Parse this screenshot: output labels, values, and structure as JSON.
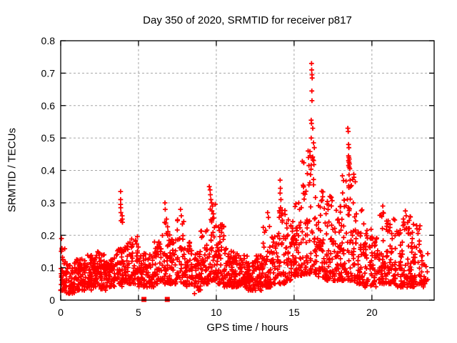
{
  "page": {
    "background": "#ffffff"
  },
  "chart_data": {
    "type": "scatter",
    "title": "Day 350 of 2020, SRMTID for receiver p817",
    "xlabel": "GPS time / hours",
    "ylabel": "SRMTID / TECUs",
    "xlim": [
      0,
      24
    ],
    "ylim": [
      0,
      0.8
    ],
    "grid": true,
    "legend": "none",
    "colors": {
      "marker": "#ff0000",
      "grid": "#a6a6a6",
      "axis": "#000000",
      "background": "#ffffff"
    },
    "xticks": [
      {
        "v": 0,
        "label": "0"
      },
      {
        "v": 5,
        "label": "5"
      },
      {
        "v": 10,
        "label": "10"
      },
      {
        "v": 15,
        "label": "15"
      },
      {
        "v": 20,
        "label": "20"
      }
    ],
    "yticks": [
      {
        "v": 0.0,
        "label": "0"
      },
      {
        "v": 0.1,
        "label": "0.1"
      },
      {
        "v": 0.2,
        "label": "0.2"
      },
      {
        "v": 0.3,
        "label": "0.3"
      },
      {
        "v": 0.4,
        "label": "0.4"
      },
      {
        "v": 0.5,
        "label": "0.5"
      },
      {
        "v": 0.6,
        "label": "0.6"
      },
      {
        "v": 0.7,
        "label": "0.7"
      },
      {
        "v": 0.8,
        "label": "0.8"
      }
    ],
    "series": [
      {
        "name": "srmtid",
        "marker": "plus",
        "color": "#ff0000",
        "density_bins": [
          {
            "x0": 0.0,
            "x1": 0.3,
            "n": 38,
            "ymin": 0.03,
            "ytyp": 0.07,
            "ymax": 0.16
          },
          {
            "x0": 0.3,
            "x1": 1.0,
            "n": 62,
            "ymin": 0.02,
            "ytyp": 0.06,
            "ymax": 0.12
          },
          {
            "x0": 1.0,
            "x1": 1.5,
            "n": 52,
            "ymin": 0.03,
            "ytyp": 0.07,
            "ymax": 0.13
          },
          {
            "x0": 1.5,
            "x1": 2.0,
            "n": 52,
            "ymin": 0.03,
            "ytyp": 0.08,
            "ymax": 0.14
          },
          {
            "x0": 2.0,
            "x1": 2.5,
            "n": 50,
            "ymin": 0.04,
            "ytyp": 0.08,
            "ymax": 0.15
          },
          {
            "x0": 2.5,
            "x1": 3.0,
            "n": 50,
            "ymin": 0.03,
            "ytyp": 0.08,
            "ymax": 0.14
          },
          {
            "x0": 3.0,
            "x1": 3.5,
            "n": 46,
            "ymin": 0.04,
            "ytyp": 0.08,
            "ymax": 0.13
          },
          {
            "x0": 3.5,
            "x1": 4.0,
            "n": 46,
            "ymin": 0.04,
            "ytyp": 0.09,
            "ymax": 0.16
          },
          {
            "x0": 4.0,
            "x1": 4.5,
            "n": 46,
            "ymin": 0.05,
            "ytyp": 0.1,
            "ymax": 0.18
          },
          {
            "x0": 4.5,
            "x1": 5.0,
            "n": 46,
            "ymin": 0.05,
            "ytyp": 0.1,
            "ymax": 0.2
          },
          {
            "x0": 5.0,
            "x1": 5.5,
            "n": 42,
            "ymin": 0.04,
            "ytyp": 0.09,
            "ymax": 0.15
          },
          {
            "x0": 5.5,
            "x1": 6.0,
            "n": 42,
            "ymin": 0.04,
            "ytyp": 0.08,
            "ymax": 0.14
          },
          {
            "x0": 6.0,
            "x1": 6.5,
            "n": 44,
            "ymin": 0.05,
            "ytyp": 0.1,
            "ymax": 0.18
          },
          {
            "x0": 6.5,
            "x1": 7.0,
            "n": 44,
            "ymin": 0.05,
            "ytyp": 0.11,
            "ymax": 0.24
          },
          {
            "x0": 7.0,
            "x1": 7.5,
            "n": 44,
            "ymin": 0.05,
            "ytyp": 0.1,
            "ymax": 0.22
          },
          {
            "x0": 7.5,
            "x1": 8.0,
            "n": 44,
            "ymin": 0.05,
            "ytyp": 0.11,
            "ymax": 0.26
          },
          {
            "x0": 8.0,
            "x1": 8.5,
            "n": 42,
            "ymin": 0.04,
            "ytyp": 0.09,
            "ymax": 0.18
          },
          {
            "x0": 8.5,
            "x1": 9.0,
            "n": 42,
            "ymin": 0.03,
            "ytyp": 0.08,
            "ymax": 0.15
          },
          {
            "x0": 9.0,
            "x1": 9.5,
            "n": 44,
            "ymin": 0.05,
            "ytyp": 0.1,
            "ymax": 0.22
          },
          {
            "x0": 9.5,
            "x1": 10.0,
            "n": 48,
            "ymin": 0.06,
            "ytyp": 0.13,
            "ymax": 0.3
          },
          {
            "x0": 10.0,
            "x1": 10.5,
            "n": 48,
            "ymin": 0.05,
            "ytyp": 0.11,
            "ymax": 0.24
          },
          {
            "x0": 10.5,
            "x1": 11.0,
            "n": 52,
            "ymin": 0.04,
            "ytyp": 0.09,
            "ymax": 0.16
          },
          {
            "x0": 11.0,
            "x1": 11.5,
            "n": 52,
            "ymin": 0.04,
            "ytyp": 0.08,
            "ymax": 0.15
          },
          {
            "x0": 11.5,
            "x1": 12.0,
            "n": 52,
            "ymin": 0.04,
            "ytyp": 0.08,
            "ymax": 0.14
          },
          {
            "x0": 12.0,
            "x1": 12.5,
            "n": 52,
            "ymin": 0.03,
            "ytyp": 0.07,
            "ymax": 0.12
          },
          {
            "x0": 12.5,
            "x1": 13.0,
            "n": 52,
            "ymin": 0.03,
            "ytyp": 0.08,
            "ymax": 0.14
          },
          {
            "x0": 13.0,
            "x1": 13.5,
            "n": 46,
            "ymin": 0.04,
            "ytyp": 0.09,
            "ymax": 0.24
          },
          {
            "x0": 13.5,
            "x1": 14.0,
            "n": 44,
            "ymin": 0.05,
            "ytyp": 0.1,
            "ymax": 0.2
          },
          {
            "x0": 14.0,
            "x1": 14.5,
            "n": 44,
            "ymin": 0.05,
            "ytyp": 0.11,
            "ymax": 0.28
          },
          {
            "x0": 14.5,
            "x1": 15.0,
            "n": 44,
            "ymin": 0.06,
            "ytyp": 0.12,
            "ymax": 0.25
          },
          {
            "x0": 15.0,
            "x1": 15.5,
            "n": 46,
            "ymin": 0.07,
            "ytyp": 0.14,
            "ymax": 0.3
          },
          {
            "x0": 15.5,
            "x1": 16.0,
            "n": 48,
            "ymin": 0.08,
            "ytyp": 0.16,
            "ymax": 0.44
          },
          {
            "x0": 16.0,
            "x1": 16.5,
            "n": 48,
            "ymin": 0.08,
            "ytyp": 0.17,
            "ymax": 0.47
          },
          {
            "x0": 16.5,
            "x1": 17.0,
            "n": 46,
            "ymin": 0.07,
            "ytyp": 0.15,
            "ymax": 0.35
          },
          {
            "x0": 17.0,
            "x1": 17.5,
            "n": 46,
            "ymin": 0.06,
            "ytyp": 0.14,
            "ymax": 0.32
          },
          {
            "x0": 17.5,
            "x1": 18.0,
            "n": 46,
            "ymin": 0.06,
            "ytyp": 0.13,
            "ymax": 0.3
          },
          {
            "x0": 18.0,
            "x1": 18.5,
            "n": 48,
            "ymin": 0.06,
            "ytyp": 0.14,
            "ymax": 0.42
          },
          {
            "x0": 18.5,
            "x1": 19.0,
            "n": 48,
            "ymin": 0.06,
            "ytyp": 0.14,
            "ymax": 0.4
          },
          {
            "x0": 19.0,
            "x1": 19.5,
            "n": 44,
            "ymin": 0.05,
            "ytyp": 0.12,
            "ymax": 0.3
          },
          {
            "x0": 19.5,
            "x1": 20.0,
            "n": 42,
            "ymin": 0.04,
            "ytyp": 0.1,
            "ymax": 0.22
          },
          {
            "x0": 20.0,
            "x1": 20.5,
            "n": 42,
            "ymin": 0.04,
            "ytyp": 0.1,
            "ymax": 0.2
          },
          {
            "x0": 20.5,
            "x1": 21.0,
            "n": 44,
            "ymin": 0.05,
            "ytyp": 0.11,
            "ymax": 0.27
          },
          {
            "x0": 21.0,
            "x1": 21.5,
            "n": 44,
            "ymin": 0.05,
            "ytyp": 0.11,
            "ymax": 0.25
          },
          {
            "x0": 21.5,
            "x1": 22.0,
            "n": 42,
            "ymin": 0.04,
            "ytyp": 0.1,
            "ymax": 0.22
          },
          {
            "x0": 22.0,
            "x1": 22.5,
            "n": 44,
            "ymin": 0.04,
            "ytyp": 0.1,
            "ymax": 0.26
          },
          {
            "x0": 22.5,
            "x1": 23.1,
            "n": 50,
            "ymin": 0.04,
            "ytyp": 0.1,
            "ymax": 0.24
          },
          {
            "x0": 23.1,
            "x1": 23.6,
            "n": 26,
            "ymin": 0.04,
            "ytyp": 0.08,
            "ymax": 0.15
          }
        ],
        "peak_points": [
          [
            0.05,
            0.19
          ],
          [
            0.08,
            0.16
          ],
          [
            3.85,
            0.335
          ],
          [
            3.85,
            0.31
          ],
          [
            3.85,
            0.295
          ],
          [
            3.86,
            0.285
          ],
          [
            3.87,
            0.27
          ],
          [
            3.88,
            0.245
          ],
          [
            3.95,
            0.26
          ],
          [
            3.96,
            0.25
          ],
          [
            3.97,
            0.24
          ],
          [
            6.7,
            0.3
          ],
          [
            6.72,
            0.28
          ],
          [
            6.8,
            0.25
          ],
          [
            7.7,
            0.28
          ],
          [
            7.75,
            0.26
          ],
          [
            8.6,
            0.02
          ],
          [
            9.55,
            0.35
          ],
          [
            9.6,
            0.34
          ],
          [
            9.62,
            0.325
          ],
          [
            9.65,
            0.31
          ],
          [
            9.7,
            0.3
          ],
          [
            9.75,
            0.29
          ],
          [
            9.72,
            0.275
          ],
          [
            13.3,
            0.27
          ],
          [
            13.35,
            0.255
          ],
          [
            14.1,
            0.37
          ],
          [
            14.12,
            0.345
          ],
          [
            14.1,
            0.33
          ],
          [
            14.15,
            0.31
          ],
          [
            14.13,
            0.285
          ],
          [
            15.3,
            0.3
          ],
          [
            15.35,
            0.28
          ],
          [
            15.9,
            0.46
          ],
          [
            15.92,
            0.44
          ],
          [
            15.95,
            0.415
          ],
          [
            15.85,
            0.39
          ],
          [
            16.12,
            0.73
          ],
          [
            16.13,
            0.71
          ],
          [
            16.15,
            0.695
          ],
          [
            16.16,
            0.685
          ],
          [
            16.14,
            0.645
          ],
          [
            16.15,
            0.615
          ],
          [
            16.1,
            0.555
          ],
          [
            16.12,
            0.545
          ],
          [
            16.2,
            0.53
          ],
          [
            16.1,
            0.5
          ],
          [
            16.25,
            0.485
          ],
          [
            16.3,
            0.47
          ],
          [
            17.3,
            0.32
          ],
          [
            18.45,
            0.53
          ],
          [
            18.48,
            0.52
          ],
          [
            18.5,
            0.48
          ],
          [
            18.52,
            0.47
          ],
          [
            18.5,
            0.445
          ],
          [
            18.52,
            0.44
          ],
          [
            18.55,
            0.435
          ],
          [
            18.5,
            0.43
          ],
          [
            18.53,
            0.425
          ],
          [
            18.56,
            0.42
          ],
          [
            18.5,
            0.415
          ],
          [
            18.54,
            0.41
          ],
          [
            18.58,
            0.405
          ],
          [
            18.6,
            0.37
          ],
          [
            18.62,
            0.35
          ],
          [
            18.8,
            0.3
          ],
          [
            20.7,
            0.29
          ],
          [
            20.72,
            0.27
          ],
          [
            21.4,
            0.25
          ],
          [
            22.15,
            0.275
          ],
          [
            22.2,
            0.26
          ],
          [
            22.9,
            0.22
          ]
        ]
      },
      {
        "name": "baseline-flags",
        "marker": "filled-square",
        "color": "#ff0000",
        "points": [
          [
            5.35,
            0
          ],
          [
            6.85,
            0
          ]
        ]
      }
    ]
  }
}
